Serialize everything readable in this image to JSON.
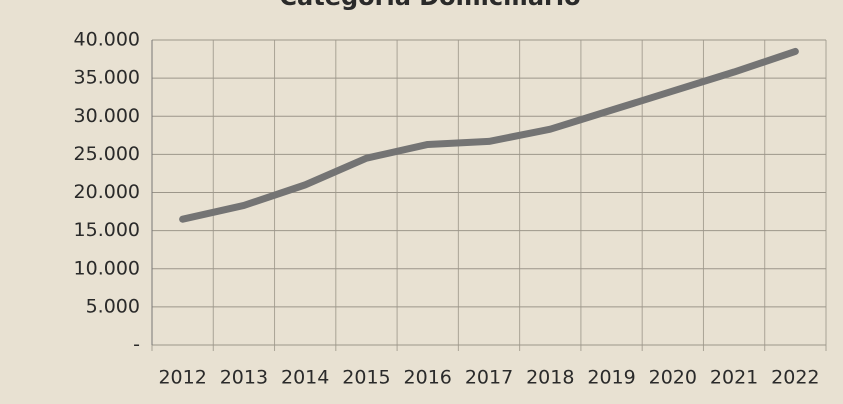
{
  "chart_data": {
    "type": "line",
    "title": "Categoria Domiciliario",
    "categories": [
      "2012",
      "2013",
      "2014",
      "2015",
      "2016",
      "2017",
      "2018",
      "2019",
      "2020",
      "2021",
      "2022"
    ],
    "series": [
      {
        "name": "Categoria Domiciliario",
        "color": "#747474",
        "values": [
          16500,
          18300,
          21000,
          24500,
          26300,
          26700,
          28300,
          30800,
          33300,
          35800,
          38500
        ]
      }
    ],
    "ylim": [
      0,
      40000
    ],
    "yticks": [
      {
        "value": 0,
        "label": "-"
      },
      {
        "value": 5000,
        "label": "5.000"
      },
      {
        "value": 10000,
        "label": "10.000"
      },
      {
        "value": 15000,
        "label": "15.000"
      },
      {
        "value": 20000,
        "label": "20.000"
      },
      {
        "value": 25000,
        "label": "25.000"
      },
      {
        "value": 30000,
        "label": "30.000"
      },
      {
        "value": 35000,
        "label": "35.000"
      },
      {
        "value": 40000,
        "label": "40.000"
      }
    ],
    "grid": true
  }
}
